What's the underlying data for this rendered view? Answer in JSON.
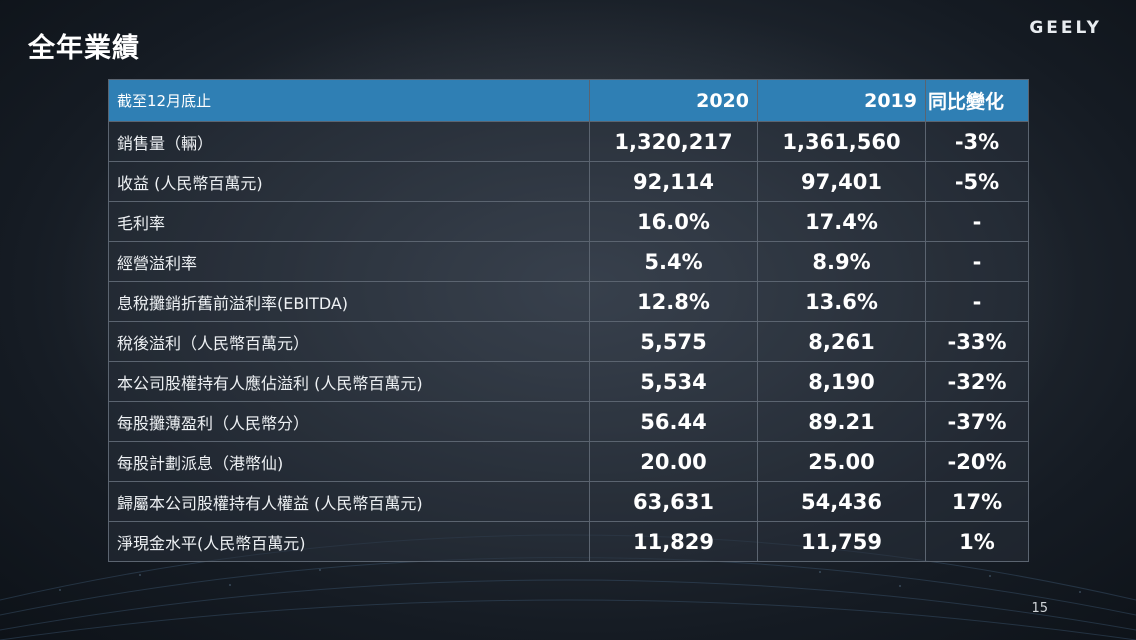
{
  "slide": {
    "title": "全年業績",
    "logo_text": "GEELY",
    "page_number": "15"
  },
  "table": {
    "header": {
      "label": "截至12月底止",
      "year_2020": "2020",
      "year_2019": "2019",
      "change": "同比變化"
    },
    "rows": [
      {
        "label": "銷售量（輛）",
        "v2020": "1,320,217",
        "v2019": "1,361,560",
        "change": "-3%"
      },
      {
        "label": "收益 (人民幣百萬元)",
        "v2020": "92,114",
        "v2019": "97,401",
        "change": "-5%"
      },
      {
        "label": "毛利率",
        "v2020": "16.0%",
        "v2019": "17.4%",
        "change": "-"
      },
      {
        "label": "經營溢利率",
        "v2020": "5.4%",
        "v2019": "8.9%",
        "change": "-"
      },
      {
        "label": "息稅攤銷折舊前溢利率(EBITDA)",
        "v2020": "12.8%",
        "v2019": "13.6%",
        "change": "-"
      },
      {
        "label": "稅後溢利（人民幣百萬元）",
        "v2020": "5,575",
        "v2019": "8,261",
        "change": "-33%"
      },
      {
        "label": "本公司股權持有人應佔溢利 (人民幣百萬元)",
        "v2020": "5,534",
        "v2019": "8,190",
        "change": "-32%"
      },
      {
        "label": "每股攤薄盈利（人民幣分）",
        "v2020": "56.44",
        "v2019": "89.21",
        "change": "-37%"
      },
      {
        "label": "每股計劃派息（港幣仙)",
        "v2020": "20.00",
        "v2019": "25.00",
        "change": "-20%"
      },
      {
        "label": "歸屬本公司股權持有人權益 (人民幣百萬元)",
        "v2020": "63,631",
        "v2019": "54,436",
        "change": "17%"
      },
      {
        "label": "淨現金水平(人民幣百萬元)",
        "v2020": "11,829",
        "v2019": "11,759",
        "change": "1%"
      }
    ]
  },
  "colors": {
    "header_blue": "#2f7fb4",
    "background": "#1b222b",
    "grid_line": "#5b6470"
  }
}
